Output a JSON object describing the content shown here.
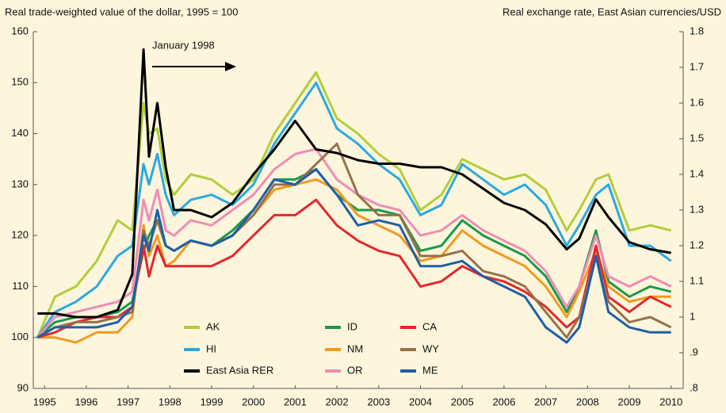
{
  "chart_data": {
    "type": "line",
    "y_label": "Real trade-weighted value of the dollar, 1995 = 100",
    "y2_label": "Real exchange rate, East Asian currencies/USD",
    "annotation": "January 1998",
    "legend": "lower center",
    "xlim": [
      1995.23,
      2010.79
    ],
    "xticks": [
      {
        "value": 1995.5,
        "label": "1995"
      },
      {
        "value": 1996.5,
        "label": "1996"
      },
      {
        "value": 1997.5,
        "label": "1997"
      },
      {
        "value": 1998.5,
        "label": "1998"
      },
      {
        "value": 1999.5,
        "label": "1999"
      },
      {
        "value": 2000.5,
        "label": "2000"
      },
      {
        "value": 2001.5,
        "label": "2001"
      },
      {
        "value": 2002.5,
        "label": "2002"
      },
      {
        "value": 2003.5,
        "label": "2003"
      },
      {
        "value": 2004.5,
        "label": "2004"
      },
      {
        "value": 2005.5,
        "label": "2005"
      },
      {
        "value": 2006.5,
        "label": "2006"
      },
      {
        "value": 2007.5,
        "label": "2007"
      },
      {
        "value": 2008.5,
        "label": "2008"
      },
      {
        "value": 2009.5,
        "label": "2009"
      },
      {
        "value": 2010.5,
        "label": "2010"
      }
    ],
    "ylim": [
      90,
      160
    ],
    "yticks": [
      90,
      100,
      110,
      120,
      130,
      140,
      150,
      160
    ],
    "y2lim": [
      0.8,
      1.8
    ],
    "y2ticks": [
      {
        "value": 0.8,
        "label": ".8"
      },
      {
        "value": 0.9,
        "label": ".9"
      },
      1,
      1.1,
      1.2,
      1.3,
      1.4,
      1.5,
      1.6,
      1.7,
      1.8
    ],
    "x": [
      1995.33,
      1995.75,
      1996.25,
      1996.75,
      1997.25,
      1997.6,
      1997.87,
      1998.0,
      1998.2,
      1998.4,
      1998.6,
      1999.0,
      1999.5,
      2000.0,
      2000.5,
      2001.0,
      2001.5,
      2002.0,
      2002.5,
      2003.0,
      2003.5,
      2004.0,
      2004.5,
      2005.0,
      2005.5,
      2006.0,
      2006.5,
      2007.0,
      2007.5,
      2008.0,
      2008.3,
      2008.7,
      2009.0,
      2009.5,
      2010.0,
      2010.5
    ],
    "series": [
      {
        "name": "AK",
        "color": "#b3cd3a",
        "values": [
          100,
          108,
          110,
          115,
          123,
          121,
          146,
          140,
          141,
          131,
          128,
          132,
          131,
          128,
          131,
          140,
          146,
          152,
          143,
          140,
          136,
          133,
          125,
          128,
          135,
          133,
          131,
          132,
          129,
          121,
          125,
          131,
          132,
          121,
          122,
          121
        ]
      },
      {
        "name": "HI",
        "color": "#2aa9e0",
        "values": [
          100,
          105,
          107,
          110,
          116,
          118,
          134,
          130,
          136,
          128,
          124,
          127,
          128,
          126,
          130,
          138,
          144,
          150,
          141,
          138,
          134,
          131,
          124,
          126,
          134,
          131,
          128,
          130,
          126,
          118,
          122,
          128,
          130,
          118,
          118,
          115
        ]
      },
      {
        "name": "East Asia RER",
        "color": "#000000",
        "axis": "y2",
        "values": [
          1.01,
          1.01,
          1.0,
          1.0,
          1.02,
          1.12,
          1.75,
          1.45,
          1.6,
          1.42,
          1.3,
          1.3,
          1.28,
          1.32,
          1.4,
          1.47,
          1.55,
          1.47,
          1.46,
          1.44,
          1.43,
          1.43,
          1.42,
          1.42,
          1.4,
          1.36,
          1.32,
          1.3,
          1.26,
          1.19,
          1.22,
          1.33,
          1.28,
          1.21,
          1.19,
          1.18
        ]
      },
      {
        "name": "ID",
        "color": "#1b9a4b",
        "values": [
          100,
          103,
          104,
          104,
          105,
          107,
          117,
          120,
          123,
          118,
          117,
          119,
          118,
          121,
          125,
          131,
          131,
          133,
          128,
          125,
          125,
          124,
          117,
          118,
          123,
          120,
          118,
          116,
          112,
          105,
          110,
          121,
          111,
          108,
          110,
          109
        ]
      },
      {
        "name": "NM",
        "color": "#f29a1f",
        "values": [
          100,
          100,
          99,
          101,
          101,
          104,
          122,
          116,
          120,
          114,
          115,
          119,
          118,
          120,
          124,
          129,
          130,
          131,
          129,
          124,
          122,
          120,
          115,
          116,
          121,
          118,
          116,
          114,
          110,
          104,
          109,
          117,
          110,
          107,
          108,
          108
        ]
      },
      {
        "name": "OR",
        "color": "#f08cb6",
        "values": [
          100,
          104,
          105,
          106,
          107,
          109,
          127,
          123,
          129,
          121,
          120,
          123,
          122,
          125,
          128,
          133,
          136,
          137,
          131,
          128,
          126,
          125,
          120,
          121,
          124,
          121,
          119,
          117,
          113,
          106,
          110,
          120,
          112,
          110,
          112,
          110
        ]
      },
      {
        "name": "CA",
        "color": "#e5262e",
        "values": [
          100,
          101,
          103,
          104,
          104,
          106,
          118,
          112,
          118,
          114,
          114,
          114,
          114,
          116,
          120,
          124,
          124,
          127,
          122,
          119,
          117,
          116,
          110,
          111,
          114,
          112,
          111,
          109,
          106,
          102,
          104,
          118,
          108,
          105,
          108,
          106
        ]
      },
      {
        "name": "WY",
        "color": "#98704a",
        "values": [
          100,
          102,
          103,
          103,
          104,
          105,
          121,
          118,
          123,
          118,
          117,
          119,
          118,
          120,
          124,
          130,
          130,
          134,
          138,
          128,
          124,
          124,
          116,
          116,
          117,
          113,
          112,
          110,
          105,
          100,
          104,
          116,
          107,
          103,
          104,
          102
        ]
      },
      {
        "name": "ME",
        "color": "#1e5fa8",
        "values": [
          100,
          102,
          102,
          102,
          103,
          106,
          120,
          117,
          125,
          118,
          117,
          119,
          118,
          120,
          125,
          131,
          130,
          133,
          128,
          122,
          123,
          122,
          114,
          114,
          115,
          112,
          110,
          108,
          102,
          99,
          102,
          116,
          105,
          102,
          101,
          101
        ]
      }
    ]
  }
}
